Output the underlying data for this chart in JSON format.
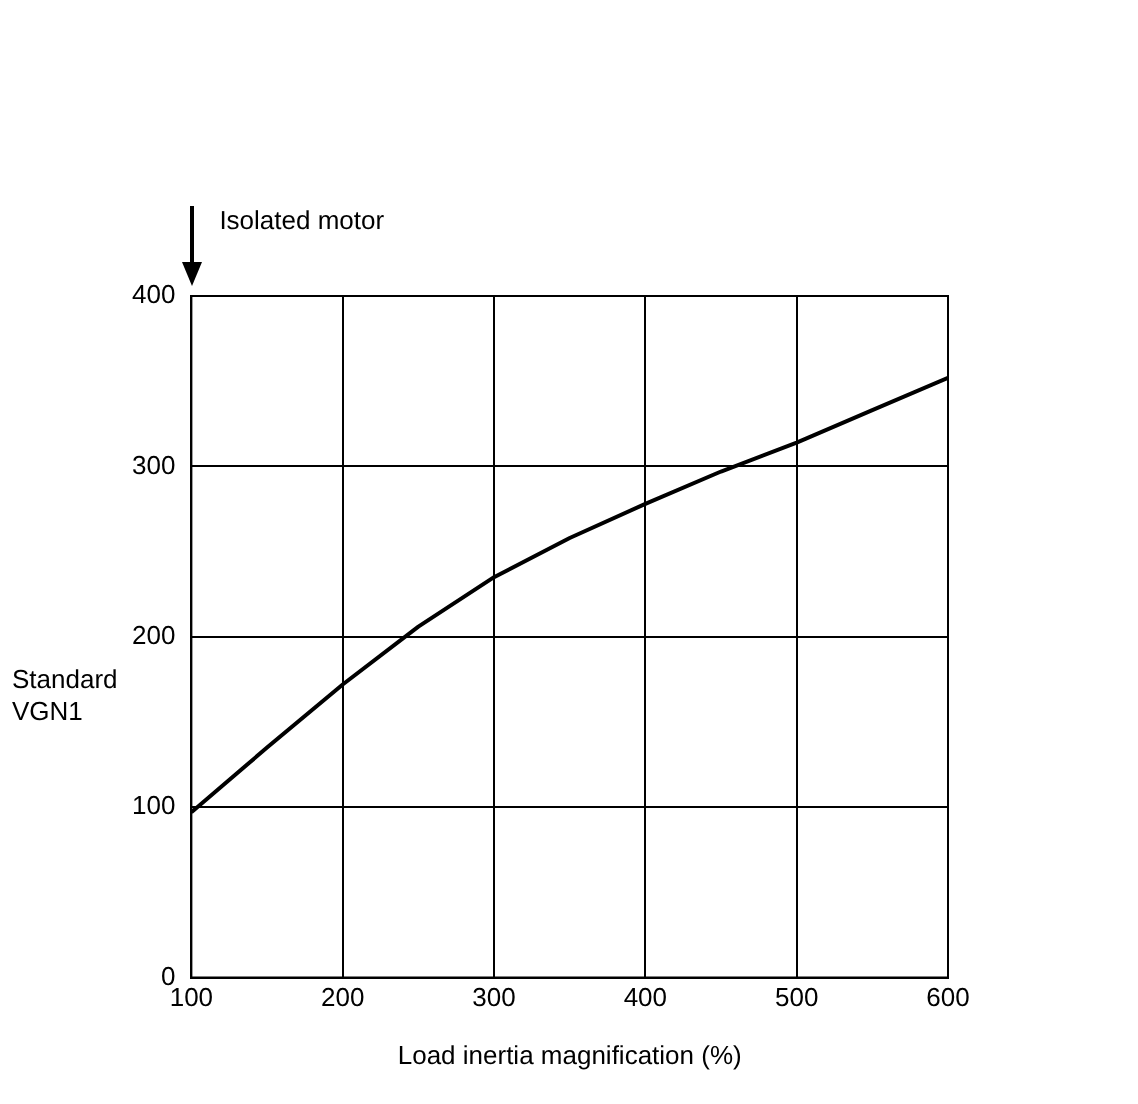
{
  "chart_data": {
    "type": "line",
    "xlabel": "Load inertia magnification (%)",
    "ylabel": "Standard\nVGN1",
    "x": [
      100,
      150,
      200,
      250,
      300,
      350,
      400,
      450,
      500,
      550,
      600
    ],
    "series": [
      {
        "color": "#000000",
        "values": [
          97,
          135,
          172,
          206,
          235,
          258,
          278,
          297,
          314,
          333,
          352
        ]
      }
    ],
    "xlim": [
      100,
      600
    ],
    "xticks": [
      100,
      200,
      300,
      400,
      500,
      600
    ],
    "ylim": [
      0,
      400
    ],
    "yticks": [
      0,
      100,
      200,
      300,
      400
    ],
    "grid": true,
    "legend": false,
    "marker": "none",
    "line_style": "solid",
    "annotations": [
      "Isolated motor"
    ]
  }
}
